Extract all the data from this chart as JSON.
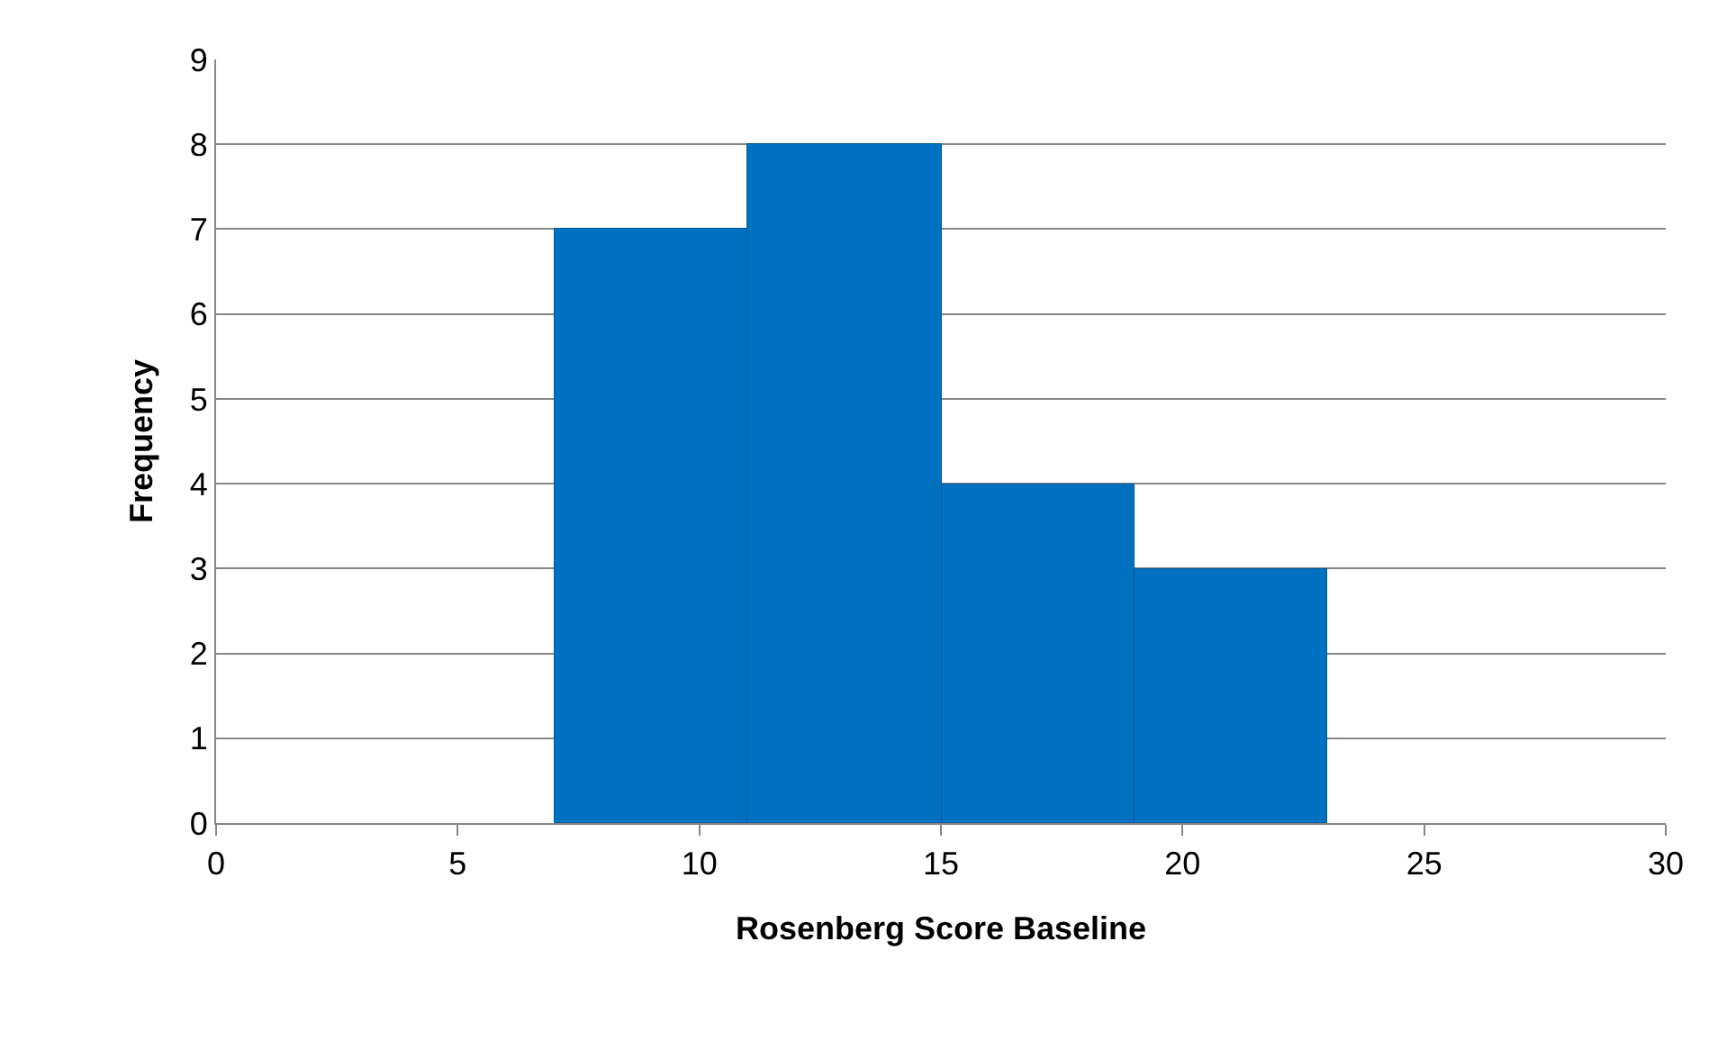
{
  "chart_data": {
    "type": "histogram",
    "xlabel": "Rosenberg Score Baseline",
    "ylabel": "Frequency",
    "bins": [
      7,
      11,
      15,
      19,
      23
    ],
    "values": [
      7,
      8,
      4,
      3
    ],
    "color": "#0070c0",
    "xlim": [
      0,
      30
    ],
    "xticks": [
      0,
      5,
      10,
      15,
      20,
      25,
      30
    ],
    "ylim": [
      0,
      9
    ],
    "yticks": [
      0,
      1,
      2,
      3,
      4,
      5,
      6,
      7,
      8,
      9
    ],
    "grid": "y"
  }
}
